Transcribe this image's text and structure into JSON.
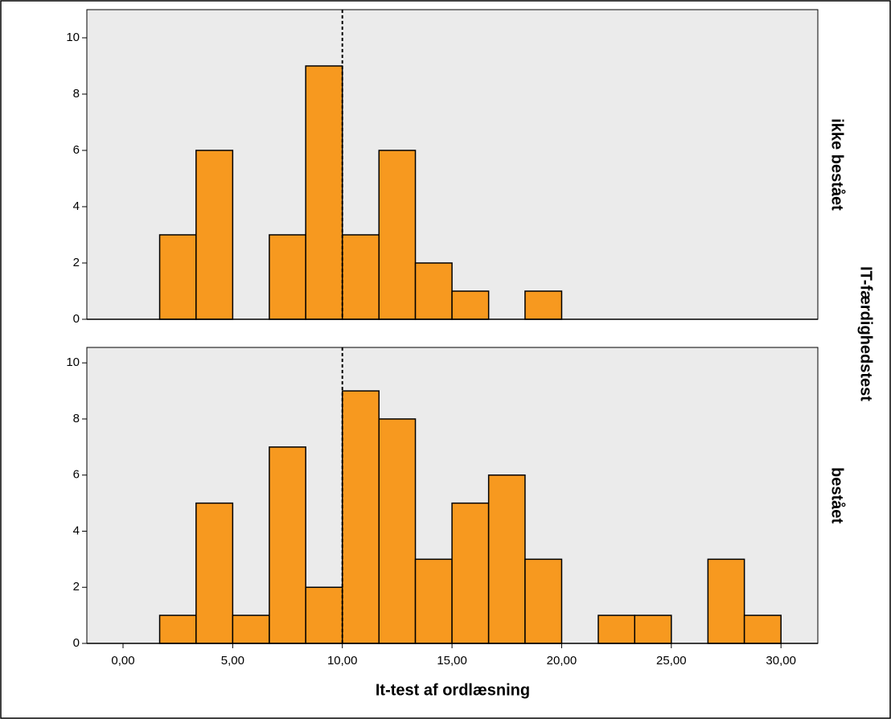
{
  "chart_data": {
    "type": "histogram",
    "x_label": "It-test af ordlæsning",
    "facet_label": "IT-færdighedstest",
    "color": "#f7991f",
    "reference_line": 10,
    "bins": [
      1.67,
      3.33,
      5,
      6.67,
      8.33,
      10,
      11.67,
      13.33,
      15,
      16.67,
      18.33,
      20,
      21.67,
      23.33,
      25,
      26.67,
      28.33,
      30
    ],
    "xlim": [
      -1.65,
      31.68
    ],
    "xticks": [
      {
        "value": 0,
        "label": "0,00"
      },
      {
        "value": 5,
        "label": "5,00"
      },
      {
        "value": 10,
        "label": "10,00"
      },
      {
        "value": 15,
        "label": "15,00"
      },
      {
        "value": 20,
        "label": "20,00"
      },
      {
        "value": 25,
        "label": "25,00"
      },
      {
        "value": 30,
        "label": "30,00"
      }
    ],
    "panels": [
      {
        "name": "ikke bestået",
        "values": [
          3,
          6,
          0,
          3,
          9,
          3,
          6,
          2,
          1,
          0,
          1,
          0,
          0,
          0,
          0,
          0,
          0
        ],
        "ylim": [
          0,
          11
        ],
        "yticks": [
          0,
          2,
          4,
          6,
          8,
          10
        ]
      },
      {
        "name": "bestået",
        "values": [
          1,
          5,
          1,
          7,
          2,
          9,
          8,
          3,
          5,
          6,
          3,
          0,
          1,
          1,
          0,
          3,
          1
        ],
        "ylim": [
          0,
          10.55
        ],
        "yticks": [
          0,
          2,
          4,
          6,
          8,
          10
        ]
      }
    ]
  }
}
